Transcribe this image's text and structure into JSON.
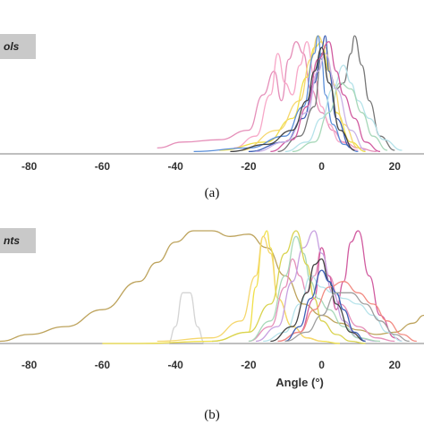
{
  "panels": {
    "a": {
      "tag": "ols",
      "caption": "(a)"
    },
    "b": {
      "tag": "nts",
      "caption": "(b)"
    }
  },
  "chart_data": [
    {
      "type": "line",
      "panel": "a",
      "xlim": [
        -88,
        28
      ],
      "ylim": [
        0,
        1
      ],
      "xticks": [
        -80,
        -60,
        -40,
        -20,
        0,
        20
      ],
      "xtick_labels": [
        "-80",
        "-60",
        "-40",
        "-20",
        "0",
        "20"
      ],
      "xlabel": "",
      "grid": false,
      "series": [
        {
          "color": "#e58fb9",
          "x": [
            -45,
            -38,
            -28,
            -20,
            -16,
            -13,
            -11,
            -9,
            -7,
            -5,
            -3,
            0,
            3,
            6,
            10,
            15
          ],
          "y": [
            0.05,
            0.1,
            0.12,
            0.2,
            0.5,
            0.7,
            0.45,
            0.8,
            0.95,
            0.85,
            0.55,
            0.35,
            0.2,
            0.1,
            0.05,
            0.02
          ]
        },
        {
          "color": "#f7a8c8",
          "x": [
            -24,
            -18,
            -14,
            -12,
            -10,
            -8,
            -6,
            -4,
            -2,
            0,
            2,
            5,
            10
          ],
          "y": [
            0.05,
            0.15,
            0.5,
            0.85,
            0.6,
            0.5,
            0.75,
            0.95,
            0.65,
            0.4,
            0.25,
            0.1,
            0.03
          ]
        },
        {
          "color": "#777777",
          "x": [
            -12,
            -6,
            -2,
            0,
            2,
            4,
            6,
            8,
            9,
            11,
            13,
            16,
            20
          ],
          "y": [
            0.02,
            0.15,
            0.4,
            0.85,
            0.7,
            0.55,
            0.6,
            0.85,
            1.0,
            0.75,
            0.45,
            0.15,
            0.03
          ]
        },
        {
          "color": "#f0e04a",
          "x": [
            -28,
            -15,
            -8,
            -4,
            -2,
            0,
            2,
            4,
            8,
            12
          ],
          "y": [
            0.03,
            0.1,
            0.3,
            0.65,
            0.9,
            0.95,
            0.7,
            0.35,
            0.1,
            0.02
          ]
        },
        {
          "color": "#f5d76e",
          "x": [
            -22,
            -12,
            -6,
            -3,
            -1,
            1,
            3,
            6,
            10
          ],
          "y": [
            0.03,
            0.2,
            0.45,
            0.8,
            1.0,
            0.9,
            0.6,
            0.25,
            0.05
          ]
        },
        {
          "color": "#5b8fd9",
          "x": [
            -35,
            -20,
            -10,
            -5,
            -2,
            -1,
            0,
            1,
            3,
            6,
            10
          ],
          "y": [
            0.02,
            0.05,
            0.15,
            0.4,
            0.85,
            1.0,
            0.8,
            0.5,
            0.25,
            0.08,
            0.02
          ]
        },
        {
          "color": "#3d5fb5",
          "x": [
            -20,
            -10,
            -5,
            -2,
            0,
            1,
            2,
            4,
            8
          ],
          "y": [
            0.02,
            0.1,
            0.3,
            0.6,
            0.9,
            1.0,
            0.7,
            0.3,
            0.05
          ]
        },
        {
          "color": "#b6e3ea",
          "x": [
            -10,
            -4,
            0,
            3,
            6,
            8,
            10,
            13,
            17,
            22
          ],
          "y": [
            0.02,
            0.1,
            0.3,
            0.55,
            0.75,
            0.6,
            0.45,
            0.3,
            0.12,
            0.03
          ]
        },
        {
          "color": "#a8d8b9",
          "x": [
            -8,
            -2,
            2,
            5,
            8,
            11,
            14,
            18
          ],
          "y": [
            0.02,
            0.1,
            0.35,
            0.6,
            0.55,
            0.35,
            0.15,
            0.03
          ]
        },
        {
          "color": "#d15ca0",
          "x": [
            -14,
            -8,
            -4,
            -1,
            2,
            4,
            6,
            9,
            12,
            16
          ],
          "y": [
            0.02,
            0.12,
            0.4,
            0.8,
            0.95,
            0.7,
            0.5,
            0.3,
            0.1,
            0.02
          ]
        },
        {
          "color": "#c9b3e6",
          "x": [
            -18,
            -10,
            -4,
            -1,
            1,
            4,
            8,
            12
          ],
          "y": [
            0.02,
            0.1,
            0.35,
            0.7,
            0.85,
            0.55,
            0.2,
            0.03
          ]
        },
        {
          "color": "#444444",
          "x": [
            -25,
            -15,
            -8,
            -4,
            -2,
            0,
            2,
            5,
            9
          ],
          "y": [
            0.02,
            0.08,
            0.2,
            0.45,
            0.7,
            0.9,
            0.6,
            0.2,
            0.03
          ]
        }
      ]
    },
    {
      "type": "line",
      "panel": "b",
      "xlim": [
        -88,
        28
      ],
      "ylim": [
        0,
        1
      ],
      "xticks": [
        -80,
        -60,
        -40,
        -20,
        0,
        20
      ],
      "xtick_labels": [
        "-80",
        "-60",
        "-40",
        "-20",
        "0",
        "20"
      ],
      "xlabel": "Angle (°)",
      "grid": false,
      "series": [
        {
          "color": "#bda35c",
          "x": [
            -88,
            -80,
            -70,
            -60,
            -50,
            -45,
            -40,
            -35,
            -30,
            -25,
            -20,
            -15,
            -10,
            -5,
            0,
            5,
            10,
            15,
            20,
            25,
            28
          ],
          "y": [
            0.02,
            0.08,
            0.15,
            0.3,
            0.55,
            0.72,
            0.9,
            1.0,
            1.0,
            0.95,
            0.97,
            0.85,
            0.6,
            0.35,
            0.25,
            0.18,
            0.12,
            0.08,
            0.1,
            0.18,
            0.25
          ]
        },
        {
          "color": "#d4d4d4",
          "x": [
            -48,
            -42,
            -40,
            -38,
            -36,
            -34,
            -32,
            -28
          ],
          "y": [
            0.0,
            0.0,
            0.15,
            0.45,
            0.45,
            0.15,
            0.0,
            0.0
          ]
        },
        {
          "color": "#f0e04a",
          "x": [
            -60,
            -50,
            -30,
            -20,
            -18,
            -16,
            -15,
            -14,
            -12,
            -8,
            -4,
            0,
            5
          ],
          "y": [
            0.0,
            0.0,
            0.02,
            0.1,
            0.5,
            0.95,
            1.0,
            0.85,
            0.4,
            0.15,
            0.05,
            0.02,
            0.0
          ]
        },
        {
          "color": "#f5d76e",
          "x": [
            -45,
            -30,
            -22,
            -18,
            -16,
            -14,
            -12,
            -8,
            -4,
            0
          ],
          "y": [
            0.02,
            0.05,
            0.2,
            0.6,
            0.95,
            0.8,
            0.4,
            0.15,
            0.05,
            0.02
          ]
        },
        {
          "color": "#e58fb9",
          "x": [
            -20,
            -14,
            -10,
            -8,
            -6,
            -4,
            -2,
            0,
            2,
            5,
            10,
            15,
            20
          ],
          "y": [
            0.02,
            0.15,
            0.5,
            0.75,
            0.6,
            0.45,
            0.6,
            0.85,
            0.6,
            0.35,
            0.15,
            0.05,
            0.02
          ]
        },
        {
          "color": "#d15ca0",
          "x": [
            -12,
            -6,
            -2,
            0,
            2,
            4,
            6,
            8,
            10,
            13,
            16,
            20,
            22
          ],
          "y": [
            0.02,
            0.1,
            0.4,
            0.85,
            0.6,
            0.3,
            0.55,
            0.9,
            1.0,
            0.6,
            0.25,
            0.05,
            0.02
          ]
        },
        {
          "color": "#c7a0e0",
          "x": [
            -18,
            -12,
            -8,
            -5,
            -2,
            0,
            3,
            6,
            10,
            15
          ],
          "y": [
            0.02,
            0.15,
            0.55,
            0.85,
            1.0,
            0.8,
            0.45,
            0.2,
            0.05,
            0.02
          ]
        },
        {
          "color": "#a8d8b9",
          "x": [
            -20,
            -14,
            -10,
            -7,
            -5,
            -3,
            -1,
            2,
            6,
            10,
            16
          ],
          "y": [
            0.02,
            0.2,
            0.6,
            0.95,
            0.8,
            0.55,
            0.4,
            0.3,
            0.15,
            0.05,
            0.02
          ]
        },
        {
          "color": "#d9d34f",
          "x": [
            -30,
            -20,
            -14,
            -10,
            -7,
            -4,
            -2,
            0,
            4,
            8,
            12
          ],
          "y": [
            0.02,
            0.1,
            0.35,
            0.8,
            1.0,
            0.7,
            0.4,
            0.2,
            0.08,
            0.02,
            0.0
          ]
        },
        {
          "color": "#b6e3ea",
          "x": [
            -16,
            -10,
            -6,
            -3,
            0,
            3,
            6,
            10,
            14,
            18,
            22
          ],
          "y": [
            0.02,
            0.1,
            0.35,
            0.6,
            0.5,
            0.45,
            0.4,
            0.35,
            0.25,
            0.1,
            0.02
          ]
        },
        {
          "color": "#444444",
          "x": [
            -14,
            -8,
            -4,
            -2,
            0,
            2,
            4,
            8,
            12
          ],
          "y": [
            0.02,
            0.15,
            0.45,
            0.7,
            0.75,
            0.55,
            0.35,
            0.1,
            0.02
          ]
        },
        {
          "color": "#f28b82",
          "x": [
            -12,
            -6,
            -2,
            2,
            6,
            10,
            14,
            18,
            22,
            26
          ],
          "y": [
            0.02,
            0.1,
            0.3,
            0.5,
            0.55,
            0.45,
            0.35,
            0.2,
            0.08,
            0.02
          ]
        },
        {
          "color": "#3d5fb5",
          "x": [
            -10,
            -6,
            -3,
            0,
            2,
            4,
            6,
            9,
            12
          ],
          "y": [
            0.02,
            0.15,
            0.4,
            0.65,
            0.55,
            0.45,
            0.3,
            0.1,
            0.02
          ]
        },
        {
          "color": "#9e9e9e",
          "x": [
            -10,
            -4,
            0,
            4,
            8,
            12,
            16,
            20,
            24
          ],
          "y": [
            0.02,
            0.1,
            0.25,
            0.45,
            0.45,
            0.35,
            0.2,
            0.08,
            0.02
          ]
        }
      ]
    }
  ]
}
